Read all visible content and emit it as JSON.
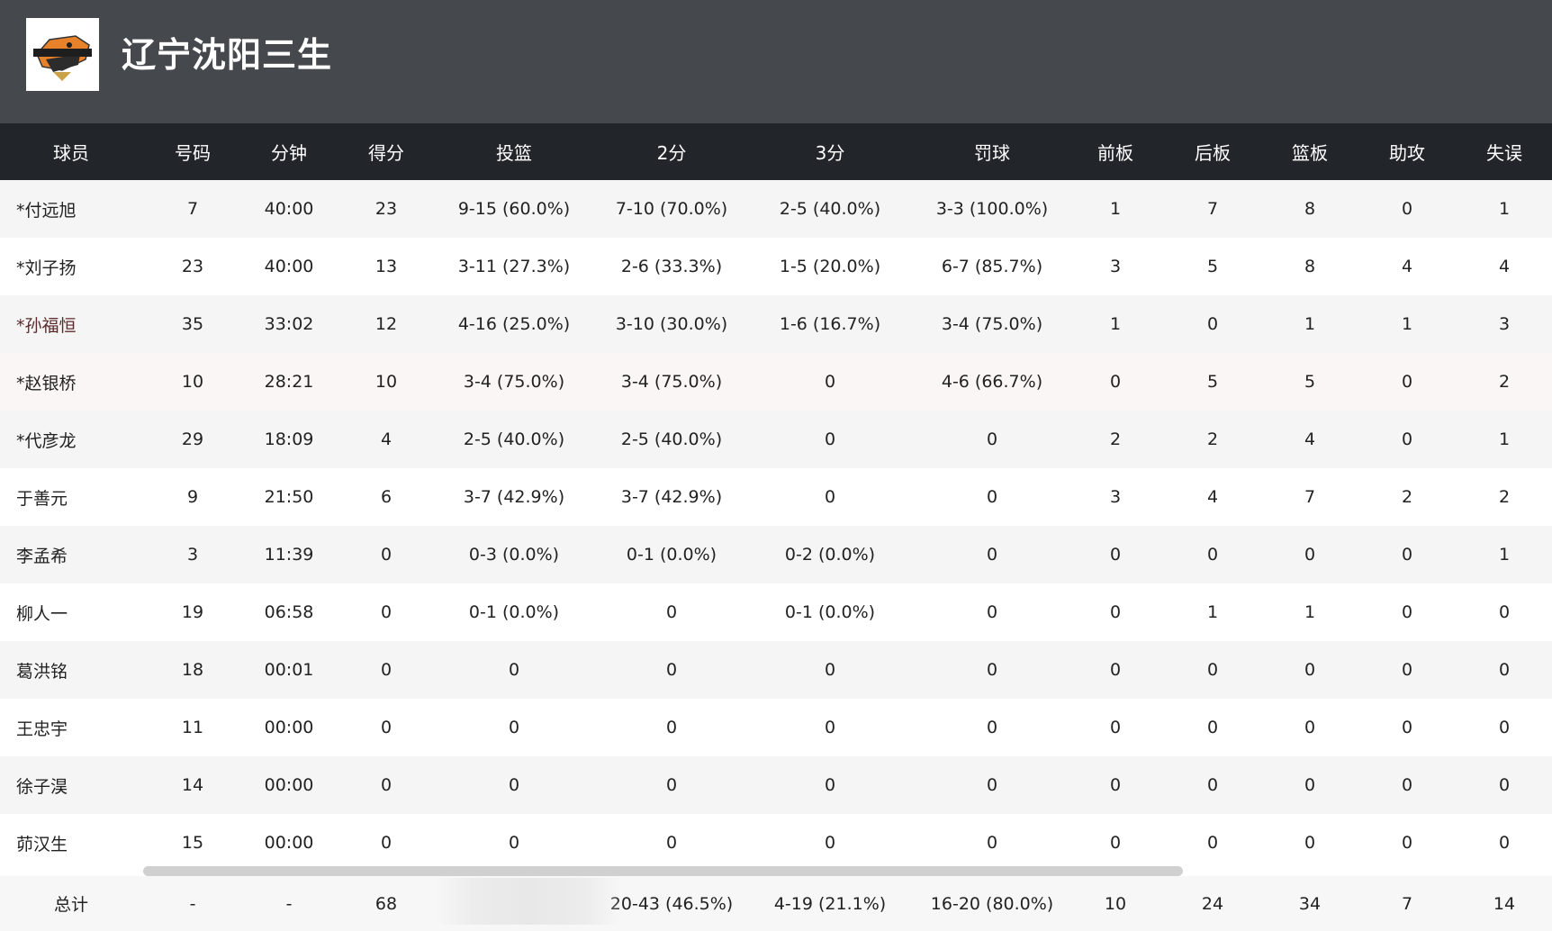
{
  "team": {
    "name": "辽宁沈阳三生",
    "logo_text": "LN LEOPARDS"
  },
  "columns": [
    "球员",
    "号码",
    "分钟",
    "得分",
    "投篮",
    "2分",
    "3分",
    "罚球",
    "前板",
    "后板",
    "篮板",
    "助攻",
    "失误"
  ],
  "players": [
    {
      "name": "*付远旭",
      "num": "7",
      "min": "40:00",
      "pts": "23",
      "fg": "9-15 (60.0%)",
      "two": "7-10 (70.0%)",
      "three": "2-5 (40.0%)",
      "ft": "3-3 (100.0%)",
      "oreb": "1",
      "dreb": "7",
      "reb": "8",
      "ast": "0",
      "tov": "1"
    },
    {
      "name": "*刘子扬",
      "num": "23",
      "min": "40:00",
      "pts": "13",
      "fg": "3-11 (27.3%)",
      "two": "2-6 (33.3%)",
      "three": "1-5 (20.0%)",
      "ft": "6-7 (85.7%)",
      "oreb": "3",
      "dreb": "5",
      "reb": "8",
      "ast": "4",
      "tov": "4"
    },
    {
      "name": "*孙福恒",
      "num": "35",
      "min": "33:02",
      "pts": "12",
      "fg": "4-16 (25.0%)",
      "two": "3-10 (30.0%)",
      "three": "1-6 (16.7%)",
      "ft": "3-4 (75.0%)",
      "oreb": "1",
      "dreb": "0",
      "reb": "1",
      "ast": "1",
      "tov": "3"
    },
    {
      "name": "*赵银桥",
      "num": "10",
      "min": "28:21",
      "pts": "10",
      "fg": "3-4 (75.0%)",
      "two": "3-4 (75.0%)",
      "three": "0",
      "ft": "4-6 (66.7%)",
      "oreb": "0",
      "dreb": "5",
      "reb": "5",
      "ast": "0",
      "tov": "2"
    },
    {
      "name": "*代彦龙",
      "num": "29",
      "min": "18:09",
      "pts": "4",
      "fg": "2-5 (40.0%)",
      "two": "2-5 (40.0%)",
      "three": "0",
      "ft": "0",
      "oreb": "2",
      "dreb": "2",
      "reb": "4",
      "ast": "0",
      "tov": "1"
    },
    {
      "name": "于善元",
      "num": "9",
      "min": "21:50",
      "pts": "6",
      "fg": "3-7 (42.9%)",
      "two": "3-7 (42.9%)",
      "three": "0",
      "ft": "0",
      "oreb": "3",
      "dreb": "4",
      "reb": "7",
      "ast": "2",
      "tov": "2"
    },
    {
      "name": "李孟希",
      "num": "3",
      "min": "11:39",
      "pts": "0",
      "fg": "0-3 (0.0%)",
      "two": "0-1 (0.0%)",
      "three": "0-2 (0.0%)",
      "ft": "0",
      "oreb": "0",
      "dreb": "0",
      "reb": "0",
      "ast": "0",
      "tov": "1"
    },
    {
      "name": "柳人一",
      "num": "19",
      "min": "06:58",
      "pts": "0",
      "fg": "0-1 (0.0%)",
      "two": "0",
      "three": "0-1 (0.0%)",
      "ft": "0",
      "oreb": "0",
      "dreb": "1",
      "reb": "1",
      "ast": "0",
      "tov": "0"
    },
    {
      "name": "葛洪铭",
      "num": "18",
      "min": "00:01",
      "pts": "0",
      "fg": "0",
      "two": "0",
      "three": "0",
      "ft": "0",
      "oreb": "0",
      "dreb": "0",
      "reb": "0",
      "ast": "0",
      "tov": "0"
    },
    {
      "name": "王忠宇",
      "num": "11",
      "min": "00:00",
      "pts": "0",
      "fg": "0",
      "two": "0",
      "three": "0",
      "ft": "0",
      "oreb": "0",
      "dreb": "0",
      "reb": "0",
      "ast": "0",
      "tov": "0"
    },
    {
      "name": "徐子淏",
      "num": "14",
      "min": "00:00",
      "pts": "0",
      "fg": "0",
      "two": "0",
      "three": "0",
      "ft": "0",
      "oreb": "0",
      "dreb": "0",
      "reb": "0",
      "ast": "0",
      "tov": "0"
    },
    {
      "name": "茆汉生",
      "num": "15",
      "min": "00:00",
      "pts": "0",
      "fg": "0",
      "two": "0",
      "three": "0",
      "ft": "0",
      "oreb": "0",
      "dreb": "0",
      "reb": "0",
      "ast": "0",
      "tov": "0"
    }
  ],
  "totals": {
    "label": "总计",
    "num": "-",
    "min": "-",
    "pts": "68",
    "fg": "",
    "two": "20-43 (46.5%)",
    "three": "4-19 (21.1%)",
    "ft": "16-20 (80.0%)",
    "oreb": "10",
    "dreb": "24",
    "reb": "34",
    "ast": "7",
    "tov": "14"
  },
  "colors": {
    "topbar": "#45484c",
    "header": "#22262b",
    "zebra": "#f5f5f5",
    "scrollbar": "#d0d0d0"
  }
}
